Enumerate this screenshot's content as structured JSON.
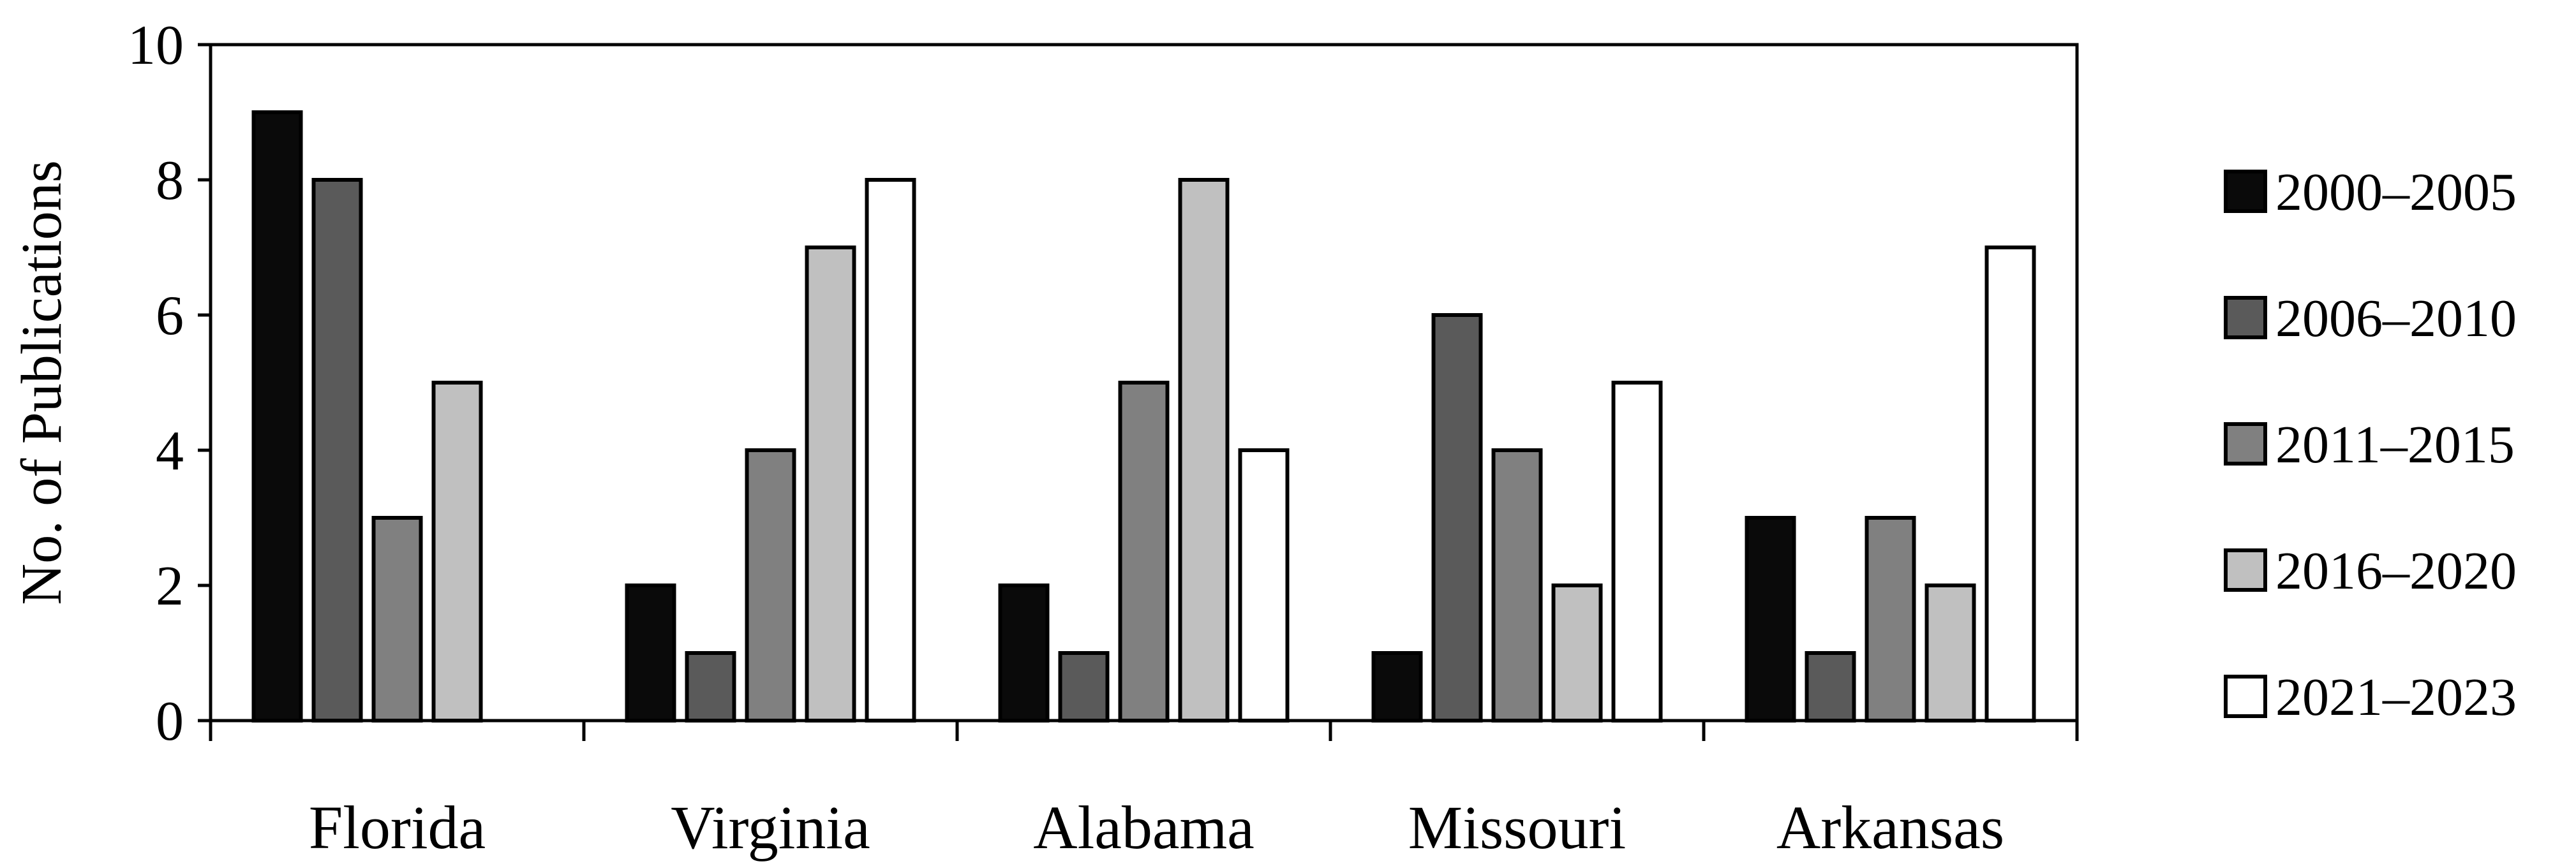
{
  "chart_data": {
    "type": "bar",
    "title": "",
    "xlabel": "",
    "ylabel": "No. of Publications",
    "ylim": [
      0,
      10
    ],
    "yticks": [
      "0",
      "2",
      "4",
      "6",
      "8",
      "10"
    ],
    "grid": false,
    "legend_position": "right",
    "categories": [
      "Florida",
      "Virginia",
      "Alabama",
      "Missouri",
      "Arkansas"
    ],
    "series": [
      {
        "name": "2000–2005",
        "color": "#0a0a0a",
        "values": [
          9,
          2,
          2,
          1,
          3
        ]
      },
      {
        "name": "2006–2010",
        "color": "#5a5a5a",
        "values": [
          8,
          1,
          1,
          6,
          1
        ]
      },
      {
        "name": "2011–2015",
        "color": "#808080",
        "values": [
          3,
          4,
          5,
          4,
          3
        ]
      },
      {
        "name": "2016–2020",
        "color": "#c0c0c0",
        "values": [
          5,
          7,
          8,
          2,
          2
        ]
      },
      {
        "name": "2021–2023",
        "color": "#ffffff",
        "values": [
          0,
          8,
          4,
          5,
          7
        ]
      }
    ]
  }
}
